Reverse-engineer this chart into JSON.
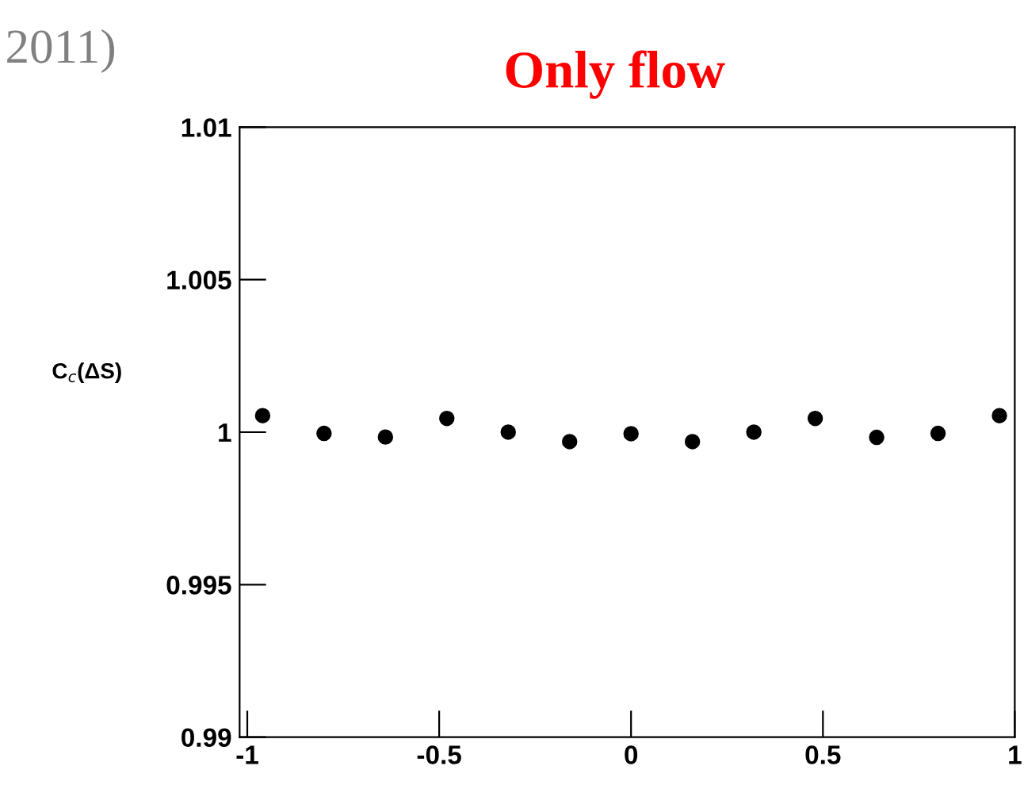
{
  "chart_data": {
    "type": "scatter",
    "title": "Only flow",
    "ylabel": "C$_{c}$(ΔS)",
    "annotations": [
      "2011)"
    ],
    "x": [
      -0.96,
      -0.8,
      -0.64,
      -0.48,
      -0.32,
      -0.16,
      0.0,
      0.16,
      0.32,
      0.48,
      0.64,
      0.8,
      0.96
    ],
    "series": [
      {
        "color": "#000000",
        "values": [
          1.00054,
          0.99996,
          0.99984,
          1.00045,
          1.0,
          0.99969,
          0.99995,
          0.99969,
          1.0,
          1.00045,
          0.99983,
          0.99996,
          1.00054
        ]
      }
    ],
    "xlim": [
      -1.02,
      1.0
    ],
    "xticks": [
      -1,
      -0.5,
      0,
      0.5,
      1
    ],
    "ylim": [
      0.99,
      1.01
    ],
    "yticks": [
      0.99,
      0.995,
      1,
      1.005,
      1.01
    ],
    "marker": "circle",
    "grid": false,
    "legend": false
  }
}
